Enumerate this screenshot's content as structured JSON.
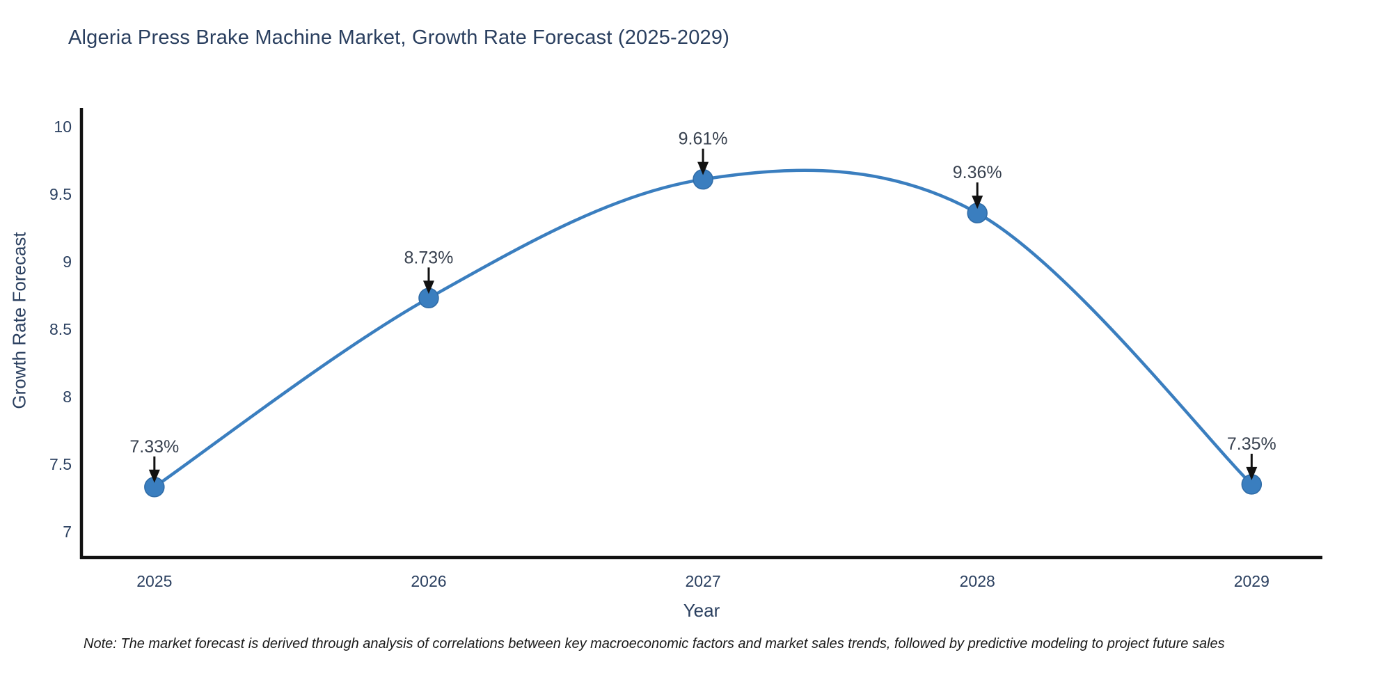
{
  "header": {
    "title": "Algeria Press Brake Machine Market, Growth Rate Forecast (2025-2029)"
  },
  "footnote": "Note: The market forecast is derived through analysis of correlations between key macroeconomic factors and market sales trends, followed by predictive modeling to project future sales",
  "chart_data": {
    "type": "line",
    "line_shape": "spline",
    "title": "Algeria Press Brake Machine Market, Growth Rate Forecast (2025-2029)",
    "xlabel": "Year",
    "ylabel": "Growth Rate Forecast",
    "x": [
      2025,
      2026,
      2027,
      2028,
      2029
    ],
    "values": [
      7.33,
      8.73,
      9.61,
      9.36,
      7.35
    ],
    "point_labels": [
      "7.33%",
      "8.73%",
      "9.61%",
      "9.36%",
      "7.35%"
    ],
    "x_tick_labels": [
      "2025",
      "2026",
      "2027",
      "2028",
      "2029"
    ],
    "y_ticks": [
      7,
      7.5,
      8,
      8.5,
      9,
      9.5,
      10
    ],
    "y_tick_labels": [
      "7",
      "7.5",
      "8",
      "8.5",
      "9",
      "9.5",
      "10"
    ],
    "xlim": [
      2024.734,
      2029.258
    ],
    "ylim": [
      6.808,
      10.124
    ],
    "grid": false,
    "legend": "none",
    "colors": {
      "line": "#3a7ebf",
      "marker": "#3a7ebf",
      "marker_edge": "#2f6ba6",
      "axis_line": "#111111",
      "annotation_arrow": "#111111",
      "annotation_text": "#38414f",
      "tick_text": "#2a3f5f",
      "title_text": "#2a3f5f"
    }
  }
}
